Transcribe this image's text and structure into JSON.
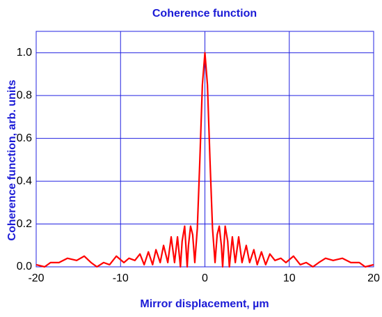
{
  "chart_data": {
    "type": "line",
    "title": "Coherence function",
    "x_label": "Mirror displacement, µm",
    "y_label": "Coherence function, arb. units",
    "x": [
      -20,
      -19,
      -18.3,
      -17.3,
      -16.3,
      -15.2,
      -14.3,
      -13.5,
      -12.8,
      -12,
      -11.3,
      -10.5,
      -9.6,
      -9,
      -8.3,
      -7.7,
      -7.2,
      -6.7,
      -6.2,
      -5.8,
      -5.3,
      -4.9,
      -4.4,
      -4,
      -3.6,
      -3.25,
      -2.9,
      -2.7,
      -2.4,
      -2.1,
      -1.95,
      -1.7,
      -1.45,
      -1.2,
      -0.9,
      -0.6,
      -0.3,
      0,
      0.3,
      0.6,
      0.9,
      1.2,
      1.45,
      1.7,
      1.95,
      2.1,
      2.4,
      2.7,
      2.9,
      3.25,
      3.6,
      4,
      4.4,
      4.9,
      5.3,
      5.8,
      6.2,
      6.7,
      7.2,
      7.7,
      8.3,
      9,
      9.6,
      10.5,
      11.3,
      12,
      12.8,
      13.5,
      14.3,
      15.2,
      16.3,
      17.3,
      18.3,
      19,
      20
    ],
    "series": [
      {
        "name": "Coherence function",
        "color": "#ff0000",
        "values": [
          0.01,
          0,
          0.02,
          0.02,
          0.04,
          0.03,
          0.05,
          0.02,
          0,
          0.02,
          0.01,
          0.05,
          0.02,
          0.04,
          0.03,
          0.06,
          0.01,
          0.07,
          0.01,
          0.08,
          0.02,
          0.1,
          0.02,
          0.14,
          0.02,
          0.14,
          0,
          0.12,
          0.19,
          0,
          0.1,
          0.19,
          0.15,
          0.02,
          0.18,
          0.5,
          0.85,
          1,
          0.85,
          0.5,
          0.18,
          0.02,
          0.15,
          0.19,
          0.1,
          0,
          0.19,
          0.12,
          0,
          0.14,
          0.02,
          0.14,
          0.02,
          0.1,
          0.02,
          0.08,
          0.01,
          0.07,
          0.01,
          0.06,
          0.03,
          0.04,
          0.02,
          0.05,
          0.01,
          0.02,
          0,
          0.02,
          0.04,
          0.03,
          0.04,
          0.02,
          0.02,
          0,
          0.01
        ]
      }
    ],
    "xlim": [
      -20,
      20
    ],
    "xticks": [
      -20,
      -10,
      0,
      10,
      20
    ],
    "ylim": [
      0,
      1.1
    ],
    "yticks": [
      {
        "value": 0,
        "label": "0.0"
      },
      0.2,
      0.4,
      0.6,
      0.8,
      {
        "value": 1,
        "label": "1.0"
      }
    ],
    "grid": true
  }
}
